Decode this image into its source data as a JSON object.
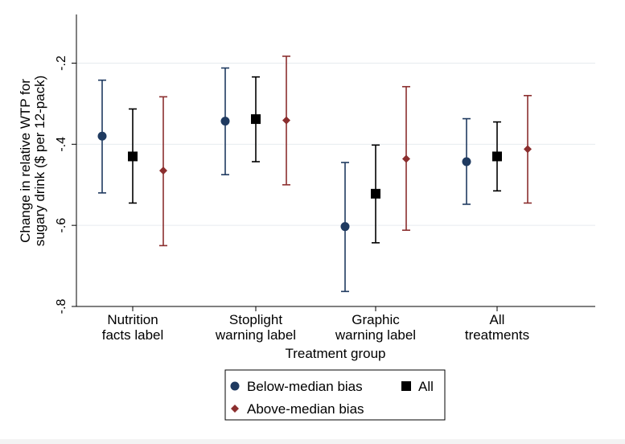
{
  "chart_data": {
    "type": "scatter",
    "subtype": "point-estimate-with-error-bars",
    "xlabel": "Treatment group",
    "ylabel": [
      "Change in relative WTP for",
      "sugary drink ($ per 12-pack)"
    ],
    "ylim": [
      -0.8,
      -0.08
    ],
    "yticks": [
      -0.2,
      -0.4,
      -0.6,
      -0.8
    ],
    "ytick_labels": [
      "-.2",
      "-.4",
      "-.6",
      "-.8"
    ],
    "grid": true,
    "categories": [
      [
        "Nutrition",
        "facts label"
      ],
      [
        "Stoplight",
        "warning label"
      ],
      [
        "Graphic",
        "warning label"
      ],
      [
        "All",
        "treatments"
      ]
    ],
    "series": [
      {
        "name": "Below-median bias",
        "color": "#1f3a60",
        "marker": "circle",
        "values": [
          -0.38,
          -0.343,
          -0.603,
          -0.443
        ],
        "lower": [
          -0.52,
          -0.475,
          -0.763,
          -0.548
        ],
        "upper": [
          -0.242,
          -0.212,
          -0.445,
          -0.337
        ]
      },
      {
        "name": "All",
        "color": "#000000",
        "marker": "square",
        "values": [
          -0.43,
          -0.338,
          -0.522,
          -0.43
        ],
        "lower": [
          -0.545,
          -0.443,
          -0.643,
          -0.515
        ],
        "upper": [
          -0.313,
          -0.234,
          -0.402,
          -0.345
        ]
      },
      {
        "name": "Above-median bias",
        "color": "#8b2e2e",
        "marker": "diamond",
        "values": [
          -0.465,
          -0.341,
          -0.436,
          -0.412
        ],
        "lower": [
          -0.65,
          -0.5,
          -0.612,
          -0.545
        ],
        "upper": [
          -0.283,
          -0.183,
          -0.258,
          -0.28
        ]
      }
    ],
    "legend": {
      "position": "bottom",
      "items": [
        "Below-median bias",
        "All",
        "Above-median bias"
      ]
    }
  }
}
